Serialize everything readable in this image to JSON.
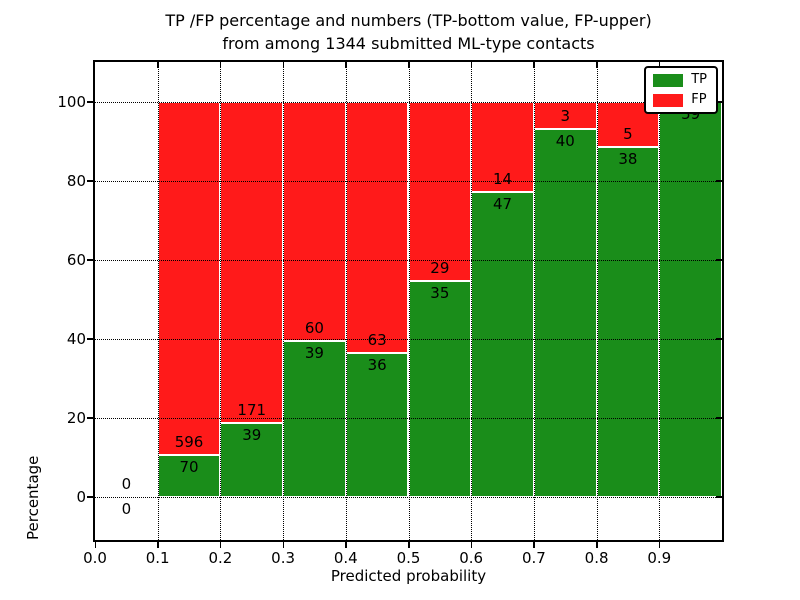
{
  "figure": {
    "title_line1": "TP /FP percentage and numbers (TP-bottom value, FP-upper)",
    "title_line2": "from among 1344 submitted ML-type contacts",
    "xlabel": "Predicted probability",
    "ylabel": "Percentage"
  },
  "legend": {
    "position": "upper right",
    "items": [
      {
        "label": "TP",
        "color": "#1A8D1A"
      },
      {
        "label": "FP",
        "color": "#FF1A1A"
      }
    ]
  },
  "chart_data": {
    "type": "bar",
    "stacked": true,
    "normalized": "percent",
    "title": "TP /FP percentage and numbers (TP-bottom value, FP-upper) from among 1344 submitted ML-type contacts",
    "xlabel": "Predicted probability",
    "ylabel": "Percentage",
    "total_contacts": 1344,
    "bin_width": 0.1,
    "grid": "dotted black, both axes",
    "bar_edge_color": "#ffffff",
    "colors": {
      "tp": "#1A8D1A",
      "fp": "#FF1A1A"
    },
    "xlim": [
      0.0,
      1.0
    ],
    "ylim": [
      -11,
      110
    ],
    "xticks": {
      "values": [
        0.0,
        0.1,
        0.2,
        0.3,
        0.4,
        0.5,
        0.6,
        0.7,
        0.8,
        0.9
      ],
      "labels": [
        "0.0",
        "0.1",
        "0.2",
        "0.3",
        "0.4",
        "0.5",
        "0.6",
        "0.7",
        "0.8",
        "0.9"
      ]
    },
    "yticks": {
      "values": [
        0,
        20,
        40,
        60,
        80,
        100
      ],
      "labels": [
        "0",
        "20",
        "40",
        "60",
        "80",
        "100"
      ]
    },
    "series": [
      {
        "name": "TP"
      },
      {
        "name": "FP"
      }
    ],
    "bins": [
      {
        "x_start": 0.0,
        "tp": 0,
        "fp": 0,
        "tp_label": "0",
        "fp_label": "0"
      },
      {
        "x_start": 0.1,
        "tp": 70,
        "fp": 596,
        "tp_label": "70",
        "fp_label": "596"
      },
      {
        "x_start": 0.2,
        "tp": 39,
        "fp": 171,
        "tp_label": "39",
        "fp_label": "171"
      },
      {
        "x_start": 0.3,
        "tp": 39,
        "fp": 60,
        "tp_label": "39",
        "fp_label": "60"
      },
      {
        "x_start": 0.4,
        "tp": 36,
        "fp": 63,
        "tp_label": "36",
        "fp_label": "63"
      },
      {
        "x_start": 0.5,
        "tp": 35,
        "fp": 29,
        "tp_label": "35",
        "fp_label": "29"
      },
      {
        "x_start": 0.6,
        "tp": 47,
        "fp": 14,
        "tp_label": "47",
        "fp_label": "14"
      },
      {
        "x_start": 0.7,
        "tp": 40,
        "fp": 3,
        "tp_label": "40",
        "fp_label": "3"
      },
      {
        "x_start": 0.8,
        "tp": 38,
        "fp": 5,
        "tp_label": "38",
        "fp_label": "5"
      },
      {
        "x_start": 0.9,
        "tp": 59,
        "fp": 0,
        "tp_label": "59",
        "fp_label": "0"
      }
    ]
  }
}
